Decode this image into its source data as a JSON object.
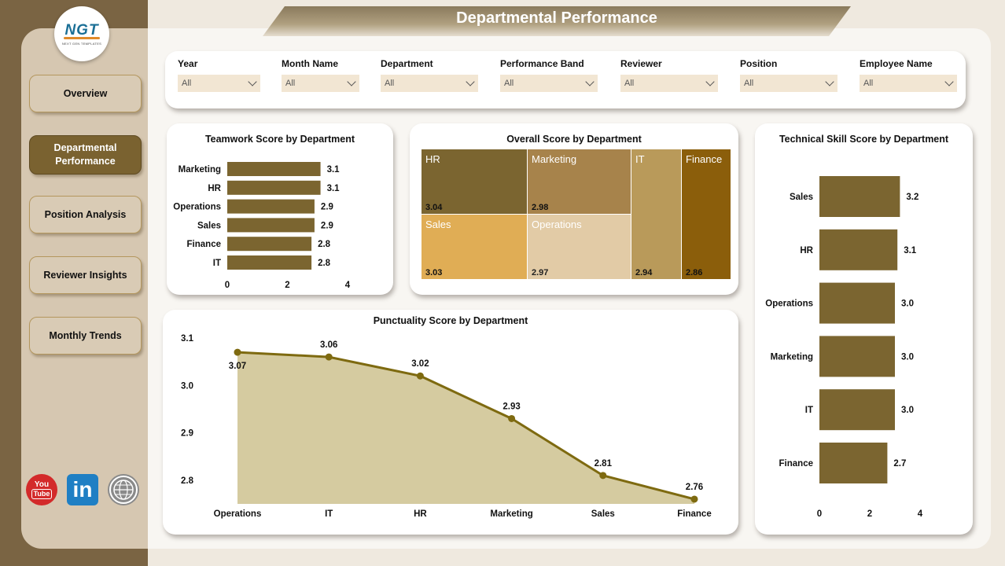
{
  "header": {
    "title": "Departmental Performance"
  },
  "logo": {
    "brand": "NGT",
    "tagline": "NEXT GEN TEMPLATES"
  },
  "nav": [
    {
      "label": "Overview",
      "active": false
    },
    {
      "label": "Departmental Performance",
      "active": true
    },
    {
      "label": "Position Analysis",
      "active": false
    },
    {
      "label": "Reviewer Insights",
      "active": false
    },
    {
      "label": "Monthly Trends",
      "active": false
    }
  ],
  "social": {
    "youtube_top": "You",
    "youtube_bottom": "Tube",
    "linkedin": "in",
    "web_icon": "globe-icon"
  },
  "filters": [
    {
      "label": "Year",
      "value": "All"
    },
    {
      "label": "Month Name",
      "value": "All"
    },
    {
      "label": "Department",
      "value": "All"
    },
    {
      "label": "Performance Band",
      "value": "All"
    },
    {
      "label": "Reviewer",
      "value": "All"
    },
    {
      "label": "Position",
      "value": "All"
    },
    {
      "label": "Employee Name",
      "value": "All"
    }
  ],
  "colors": {
    "bar": "#7b6530",
    "accent_dark": "#7a6443",
    "line": "#7e6a10",
    "area": "#d5cba0"
  },
  "chart_data": [
    {
      "id": "teamwork",
      "type": "bar",
      "orientation": "horizontal",
      "title": "Teamwork Score by Department",
      "categories": [
        "Marketing",
        "HR",
        "Operations",
        "Sales",
        "Finance",
        "IT"
      ],
      "values": [
        3.1,
        3.1,
        2.9,
        2.9,
        2.8,
        2.8
      ],
      "value_labels": [
        "3.1",
        "3.1",
        "2.9",
        "2.9",
        "2.8",
        "2.8"
      ],
      "xlim": [
        0,
        4
      ],
      "ticks": [
        "0",
        "2",
        "4"
      ]
    },
    {
      "id": "overall",
      "type": "treemap",
      "title": "Overall Score by Department",
      "items": [
        {
          "name": "HR",
          "value": 3.04,
          "label": "3.04",
          "color": "#7b6530"
        },
        {
          "name": "Marketing",
          "value": 2.98,
          "label": "2.98",
          "color": "#a7834b"
        },
        {
          "name": "IT",
          "value": 2.94,
          "label": "2.94",
          "color": "#b99a5a"
        },
        {
          "name": "Finance",
          "value": 2.86,
          "label": "2.86",
          "color": "#8b5e0b"
        },
        {
          "name": "Sales",
          "value": 3.03,
          "label": "3.03",
          "color": "#e0ad55"
        },
        {
          "name": "Operations",
          "value": 2.97,
          "label": "2.97",
          "color": "#e2cba6"
        }
      ]
    },
    {
      "id": "technical",
      "type": "bar",
      "orientation": "horizontal",
      "title": "Technical Skill Score by Department",
      "categories": [
        "Sales",
        "HR",
        "Operations",
        "Marketing",
        "IT",
        "Finance"
      ],
      "values": [
        3.2,
        3.1,
        3.0,
        3.0,
        3.0,
        2.7
      ],
      "value_labels": [
        "3.2",
        "3.1",
        "3.0",
        "3.0",
        "3.0",
        "2.7"
      ],
      "xlim": [
        0,
        4
      ],
      "ticks": [
        "0",
        "2",
        "4"
      ]
    },
    {
      "id": "punctuality",
      "type": "area",
      "title": "Punctuality Score by Department",
      "categories": [
        "Operations",
        "IT",
        "HR",
        "Marketing",
        "Sales",
        "Finance"
      ],
      "values": [
        3.07,
        3.06,
        3.02,
        2.93,
        2.81,
        2.76
      ],
      "value_labels": [
        "3.07",
        "3.06",
        "3.02",
        "2.93",
        "2.81",
        "2.76"
      ],
      "ylim": [
        2.75,
        3.1
      ],
      "yticks": [
        3.1,
        3.0,
        2.9,
        2.8
      ],
      "ytick_labels": [
        "3.1",
        "3.0",
        "2.9",
        "2.8"
      ]
    }
  ]
}
